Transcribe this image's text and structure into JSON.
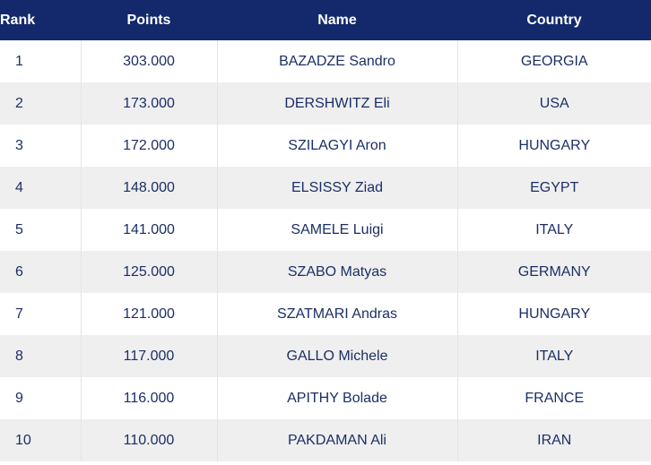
{
  "colors": {
    "header_bg": "#13296b",
    "header_text": "#ffffff",
    "row_alt_bg": "#efefef",
    "cell_text": "#1b2f66"
  },
  "columns": [
    "Rank",
    "Points",
    "Name",
    "Country"
  ],
  "rows": [
    {
      "rank": "1",
      "points": "303.000",
      "name": "BAZADZE Sandro",
      "country": "GEORGIA"
    },
    {
      "rank": "2",
      "points": "173.000",
      "name": "DERSHWITZ Eli",
      "country": "USA"
    },
    {
      "rank": "3",
      "points": "172.000",
      "name": "SZILAGYI Aron",
      "country": "HUNGARY"
    },
    {
      "rank": "4",
      "points": "148.000",
      "name": "ELSISSY Ziad",
      "country": "EGYPT"
    },
    {
      "rank": "5",
      "points": "141.000",
      "name": "SAMELE Luigi",
      "country": "ITALY"
    },
    {
      "rank": "6",
      "points": "125.000",
      "name": "SZABO Matyas",
      "country": "GERMANY"
    },
    {
      "rank": "7",
      "points": "121.000",
      "name": "SZATMARI Andras",
      "country": "HUNGARY"
    },
    {
      "rank": "8",
      "points": "117.000",
      "name": "GALLO Michele",
      "country": "ITALY"
    },
    {
      "rank": "9",
      "points": "116.000",
      "name": "APITHY Bolade",
      "country": "FRANCE"
    },
    {
      "rank": "10",
      "points": "110.000",
      "name": "PAKDAMAN Ali",
      "country": "IRAN"
    }
  ]
}
